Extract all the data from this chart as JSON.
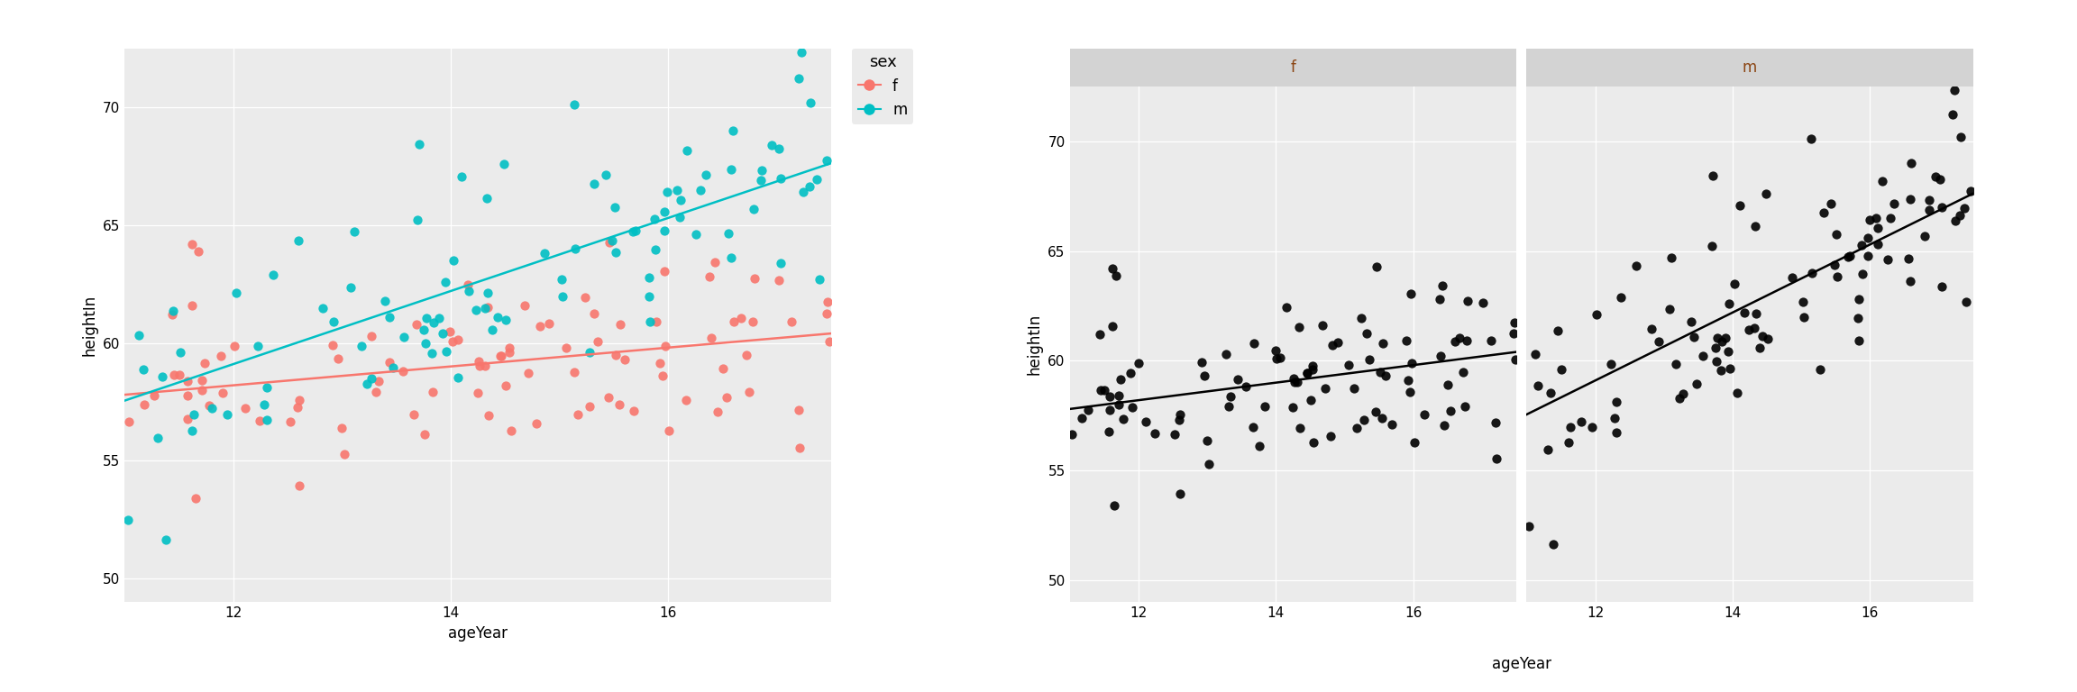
{
  "xlabel": "ageYear",
  "ylabel": "heightIn",
  "xlim": [
    11.0,
    17.5
  ],
  "ylim": [
    49.0,
    72.5
  ],
  "yticks": [
    50,
    55,
    60,
    65,
    70
  ],
  "xticks": [
    12,
    14,
    16
  ],
  "bg_color": "#EBEBEB",
  "grid_color": "#FFFFFF",
  "color_f": "#F8766D",
  "color_m": "#00BFC4",
  "color_black": "#000000",
  "facet_label_bg": "#D3D3D3",
  "facet_label_color": "#8B4513",
  "legend_title": "sex",
  "facet_labels": [
    "f",
    "m"
  ],
  "slope_f": 0.4,
  "intercept_f": 53.4,
  "slope_m": 1.55,
  "intercept_m": 40.5,
  "seed_f": 137,
  "seed_m": 52,
  "n_f": 100,
  "n_m": 100
}
